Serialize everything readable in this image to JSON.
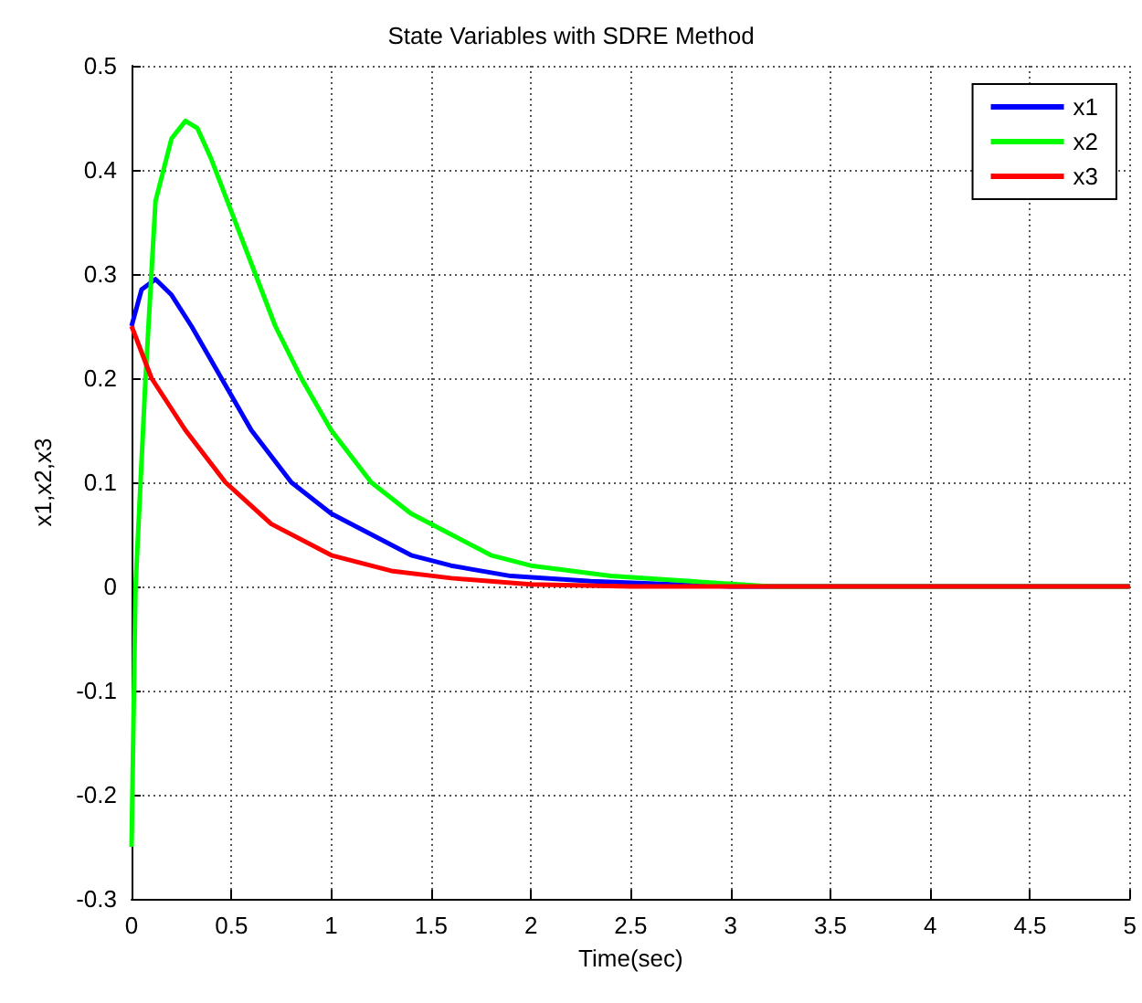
{
  "chart_data": {
    "type": "line",
    "title": "State Variables with SDRE Method",
    "xlabel": "Time(sec)",
    "ylabel": "x1,x2,x3",
    "xlim": [
      0,
      5
    ],
    "xticks": [
      0,
      0.5,
      1,
      1.5,
      2,
      2.5,
      3,
      3.5,
      4,
      4.5,
      5
    ],
    "ylim": [
      -0.3,
      0.5
    ],
    "yticks": [
      -0.3,
      -0.2,
      -0.1,
      0,
      0.1,
      0.2,
      0.3,
      0.4,
      0.5
    ],
    "grid": true,
    "legend": "top right",
    "marker": "none",
    "line_style": "solid",
    "series": [
      {
        "name": "x1",
        "color": "#0000ff",
        "x": [
          0,
          0.05,
          0.12,
          0.2,
          0.3,
          0.45,
          0.6,
          0.8,
          1.0,
          1.2,
          1.4,
          1.6,
          1.9,
          2.3,
          3,
          5
        ],
        "values": [
          0.25,
          0.285,
          0.295,
          0.28,
          0.25,
          0.2,
          0.15,
          0.1,
          0.07,
          0.05,
          0.03,
          0.02,
          0.01,
          0.005,
          0,
          0
        ]
      },
      {
        "name": "x2",
        "color": "#00ff00",
        "x": [
          0,
          0.02,
          0.07,
          0.12,
          0.2,
          0.27,
          0.33,
          0.4,
          0.5,
          0.62,
          0.72,
          0.85,
          1.0,
          1.2,
          1.4,
          1.6,
          1.8,
          2.0,
          2.4,
          2.8,
          3.2,
          5
        ],
        "values": [
          -0.25,
          0,
          0.2,
          0.37,
          0.43,
          0.447,
          0.44,
          0.41,
          0.36,
          0.3,
          0.25,
          0.2,
          0.15,
          0.1,
          0.07,
          0.05,
          0.03,
          0.02,
          0.01,
          0.005,
          0,
          0
        ]
      },
      {
        "name": "x3",
        "color": "#ff0000",
        "x": [
          0,
          0.1,
          0.27,
          0.47,
          0.7,
          1.0,
          1.3,
          1.6,
          2.0,
          2.5,
          5
        ],
        "values": [
          0.25,
          0.2,
          0.15,
          0.1,
          0.06,
          0.03,
          0.015,
          0.008,
          0.002,
          0,
          0
        ]
      }
    ]
  }
}
